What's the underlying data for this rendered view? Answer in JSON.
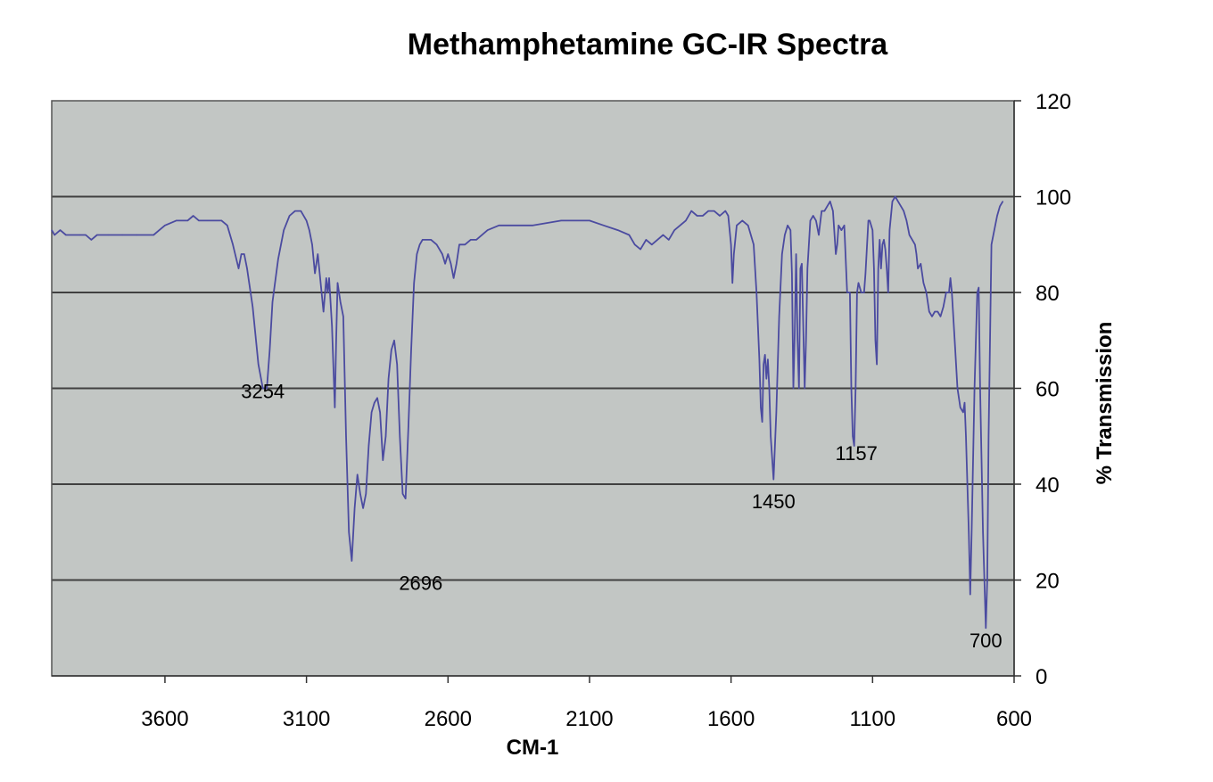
{
  "chart_data": {
    "type": "line",
    "title": "Methamphetamine GC-IR Spectra",
    "xlabel": "CM-1",
    "ylabel": "% Transmission",
    "xlim": [
      4000,
      600
    ],
    "x_reversed": true,
    "ylim": [
      0,
      120
    ],
    "x_ticks": [
      3600,
      3100,
      2600,
      2100,
      1600,
      1100,
      600
    ],
    "y_ticks": [
      0,
      20,
      40,
      60,
      80,
      100,
      120
    ],
    "y_axis_side": "right",
    "gridlines": [
      20,
      40,
      60,
      80,
      100
    ],
    "grid": true,
    "legend": "none",
    "colors": {
      "line": "#4B4BA0",
      "plot_bg": "#C2C6C4",
      "grid": "#404040"
    },
    "annotations": [
      {
        "label": "3254",
        "x": 3254,
        "y": 58
      },
      {
        "label": "2696",
        "x": 2696,
        "y": 18
      },
      {
        "label": "1450",
        "x": 1450,
        "y": 35
      },
      {
        "label": "1157",
        "x": 1157,
        "y": 45
      },
      {
        "label": "700",
        "x": 700,
        "y": 6
      }
    ],
    "series": [
      {
        "values": [
          [
            4000,
            93
          ],
          [
            3990,
            92
          ],
          [
            3970,
            93
          ],
          [
            3950,
            92
          ],
          [
            3900,
            92
          ],
          [
            3880,
            92
          ],
          [
            3860,
            91
          ],
          [
            3840,
            92
          ],
          [
            3800,
            92
          ],
          [
            3750,
            92
          ],
          [
            3700,
            92
          ],
          [
            3640,
            92
          ],
          [
            3620,
            93
          ],
          [
            3600,
            94
          ],
          [
            3560,
            95
          ],
          [
            3520,
            95
          ],
          [
            3500,
            96
          ],
          [
            3480,
            95
          ],
          [
            3450,
            95
          ],
          [
            3400,
            95
          ],
          [
            3380,
            94
          ],
          [
            3360,
            90
          ],
          [
            3340,
            85
          ],
          [
            3330,
            88
          ],
          [
            3320,
            88
          ],
          [
            3310,
            85
          ],
          [
            3290,
            77
          ],
          [
            3270,
            65
          ],
          [
            3254,
            60
          ],
          [
            3240,
            60
          ],
          [
            3230,
            68
          ],
          [
            3220,
            78
          ],
          [
            3200,
            87
          ],
          [
            3180,
            93
          ],
          [
            3160,
            96
          ],
          [
            3140,
            97
          ],
          [
            3120,
            97
          ],
          [
            3100,
            95
          ],
          [
            3090,
            93
          ],
          [
            3080,
            90
          ],
          [
            3070,
            84
          ],
          [
            3060,
            88
          ],
          [
            3050,
            82
          ],
          [
            3040,
            76
          ],
          [
            3030,
            83
          ],
          [
            3025,
            80
          ],
          [
            3020,
            83
          ],
          [
            3010,
            73
          ],
          [
            3000,
            56
          ],
          [
            2995,
            70
          ],
          [
            2990,
            82
          ],
          [
            2980,
            78
          ],
          [
            2970,
            75
          ],
          [
            2960,
            50
          ],
          [
            2950,
            30
          ],
          [
            2940,
            24
          ],
          [
            2930,
            35
          ],
          [
            2920,
            42
          ],
          [
            2910,
            38
          ],
          [
            2900,
            35
          ],
          [
            2890,
            38
          ],
          [
            2880,
            48
          ],
          [
            2870,
            55
          ],
          [
            2860,
            57
          ],
          [
            2850,
            58
          ],
          [
            2840,
            55
          ],
          [
            2830,
            45
          ],
          [
            2820,
            50
          ],
          [
            2810,
            62
          ],
          [
            2800,
            68
          ],
          [
            2790,
            70
          ],
          [
            2780,
            65
          ],
          [
            2770,
            50
          ],
          [
            2760,
            38
          ],
          [
            2750,
            37
          ],
          [
            2740,
            52
          ],
          [
            2730,
            68
          ],
          [
            2720,
            82
          ],
          [
            2710,
            88
          ],
          [
            2700,
            90
          ],
          [
            2690,
            91
          ],
          [
            2660,
            91
          ],
          [
            2640,
            90
          ],
          [
            2620,
            88
          ],
          [
            2610,
            86
          ],
          [
            2600,
            88
          ],
          [
            2590,
            86
          ],
          [
            2580,
            83
          ],
          [
            2570,
            86
          ],
          [
            2560,
            90
          ],
          [
            2540,
            90
          ],
          [
            2520,
            91
          ],
          [
            2500,
            91
          ],
          [
            2460,
            93
          ],
          [
            2420,
            94
          ],
          [
            2380,
            94
          ],
          [
            2300,
            94
          ],
          [
            2200,
            95
          ],
          [
            2100,
            95
          ],
          [
            2050,
            94
          ],
          [
            2000,
            93
          ],
          [
            1960,
            92
          ],
          [
            1940,
            90
          ],
          [
            1920,
            89
          ],
          [
            1900,
            91
          ],
          [
            1880,
            90
          ],
          [
            1860,
            91
          ],
          [
            1840,
            92
          ],
          [
            1820,
            91
          ],
          [
            1800,
            93
          ],
          [
            1780,
            94
          ],
          [
            1760,
            95
          ],
          [
            1740,
            97
          ],
          [
            1720,
            96
          ],
          [
            1700,
            96
          ],
          [
            1680,
            97
          ],
          [
            1660,
            97
          ],
          [
            1640,
            96
          ],
          [
            1620,
            97
          ],
          [
            1610,
            96
          ],
          [
            1600,
            90
          ],
          [
            1595,
            82
          ],
          [
            1590,
            88
          ],
          [
            1580,
            94
          ],
          [
            1560,
            95
          ],
          [
            1540,
            94
          ],
          [
            1520,
            90
          ],
          [
            1510,
            80
          ],
          [
            1500,
            66
          ],
          [
            1495,
            56
          ],
          [
            1490,
            53
          ],
          [
            1485,
            65
          ],
          [
            1480,
            67
          ],
          [
            1475,
            62
          ],
          [
            1470,
            66
          ],
          [
            1465,
            60
          ],
          [
            1460,
            50
          ],
          [
            1450,
            41
          ],
          [
            1440,
            55
          ],
          [
            1430,
            75
          ],
          [
            1420,
            88
          ],
          [
            1410,
            92
          ],
          [
            1400,
            94
          ],
          [
            1390,
            93
          ],
          [
            1385,
            84
          ],
          [
            1380,
            60
          ],
          [
            1375,
            72
          ],
          [
            1370,
            88
          ],
          [
            1365,
            70
          ],
          [
            1360,
            60
          ],
          [
            1355,
            85
          ],
          [
            1350,
            86
          ],
          [
            1340,
            60
          ],
          [
            1335,
            70
          ],
          [
            1330,
            85
          ],
          [
            1320,
            95
          ],
          [
            1310,
            96
          ],
          [
            1300,
            95
          ],
          [
            1290,
            92
          ],
          [
            1280,
            97
          ],
          [
            1270,
            97
          ],
          [
            1260,
            98
          ],
          [
            1250,
            99
          ],
          [
            1240,
            97
          ],
          [
            1230,
            88
          ],
          [
            1225,
            90
          ],
          [
            1220,
            94
          ],
          [
            1210,
            93
          ],
          [
            1200,
            94
          ],
          [
            1190,
            80
          ],
          [
            1180,
            80
          ],
          [
            1175,
            60
          ],
          [
            1170,
            50
          ],
          [
            1165,
            48
          ],
          [
            1160,
            60
          ],
          [
            1155,
            80
          ],
          [
            1150,
            82
          ],
          [
            1140,
            80
          ],
          [
            1130,
            80
          ],
          [
            1125,
            84
          ],
          [
            1115,
            95
          ],
          [
            1110,
            95
          ],
          [
            1100,
            93
          ],
          [
            1095,
            85
          ],
          [
            1090,
            70
          ],
          [
            1085,
            65
          ],
          [
            1080,
            85
          ],
          [
            1075,
            91
          ],
          [
            1070,
            85
          ],
          [
            1065,
            90
          ],
          [
            1060,
            91
          ],
          [
            1055,
            89
          ],
          [
            1050,
            85
          ],
          [
            1045,
            80
          ],
          [
            1040,
            93
          ],
          [
            1030,
            99
          ],
          [
            1020,
            100
          ],
          [
            1010,
            99
          ],
          [
            1000,
            98
          ],
          [
            990,
            97
          ],
          [
            980,
            95
          ],
          [
            970,
            92
          ],
          [
            960,
            91
          ],
          [
            950,
            90
          ],
          [
            945,
            88
          ],
          [
            940,
            85
          ],
          [
            930,
            86
          ],
          [
            920,
            82
          ],
          [
            910,
            80
          ],
          [
            900,
            76
          ],
          [
            890,
            75
          ],
          [
            880,
            76
          ],
          [
            870,
            76
          ],
          [
            860,
            75
          ],
          [
            850,
            77
          ],
          [
            840,
            80
          ],
          [
            830,
            80
          ],
          [
            825,
            83
          ],
          [
            820,
            80
          ],
          [
            810,
            70
          ],
          [
            800,
            60
          ],
          [
            795,
            58
          ],
          [
            790,
            56
          ],
          [
            780,
            55
          ],
          [
            775,
            57
          ],
          [
            770,
            50
          ],
          [
            760,
            30
          ],
          [
            755,
            17
          ],
          [
            750,
            30
          ],
          [
            740,
            60
          ],
          [
            730,
            80
          ],
          [
            725,
            81
          ],
          [
            720,
            60
          ],
          [
            710,
            30
          ],
          [
            700,
            10
          ],
          [
            695,
            20
          ],
          [
            690,
            50
          ],
          [
            685,
            70
          ],
          [
            680,
            90
          ],
          [
            670,
            93
          ],
          [
            660,
            96
          ],
          [
            650,
            98
          ],
          [
            640,
            99
          ]
        ]
      }
    ]
  }
}
